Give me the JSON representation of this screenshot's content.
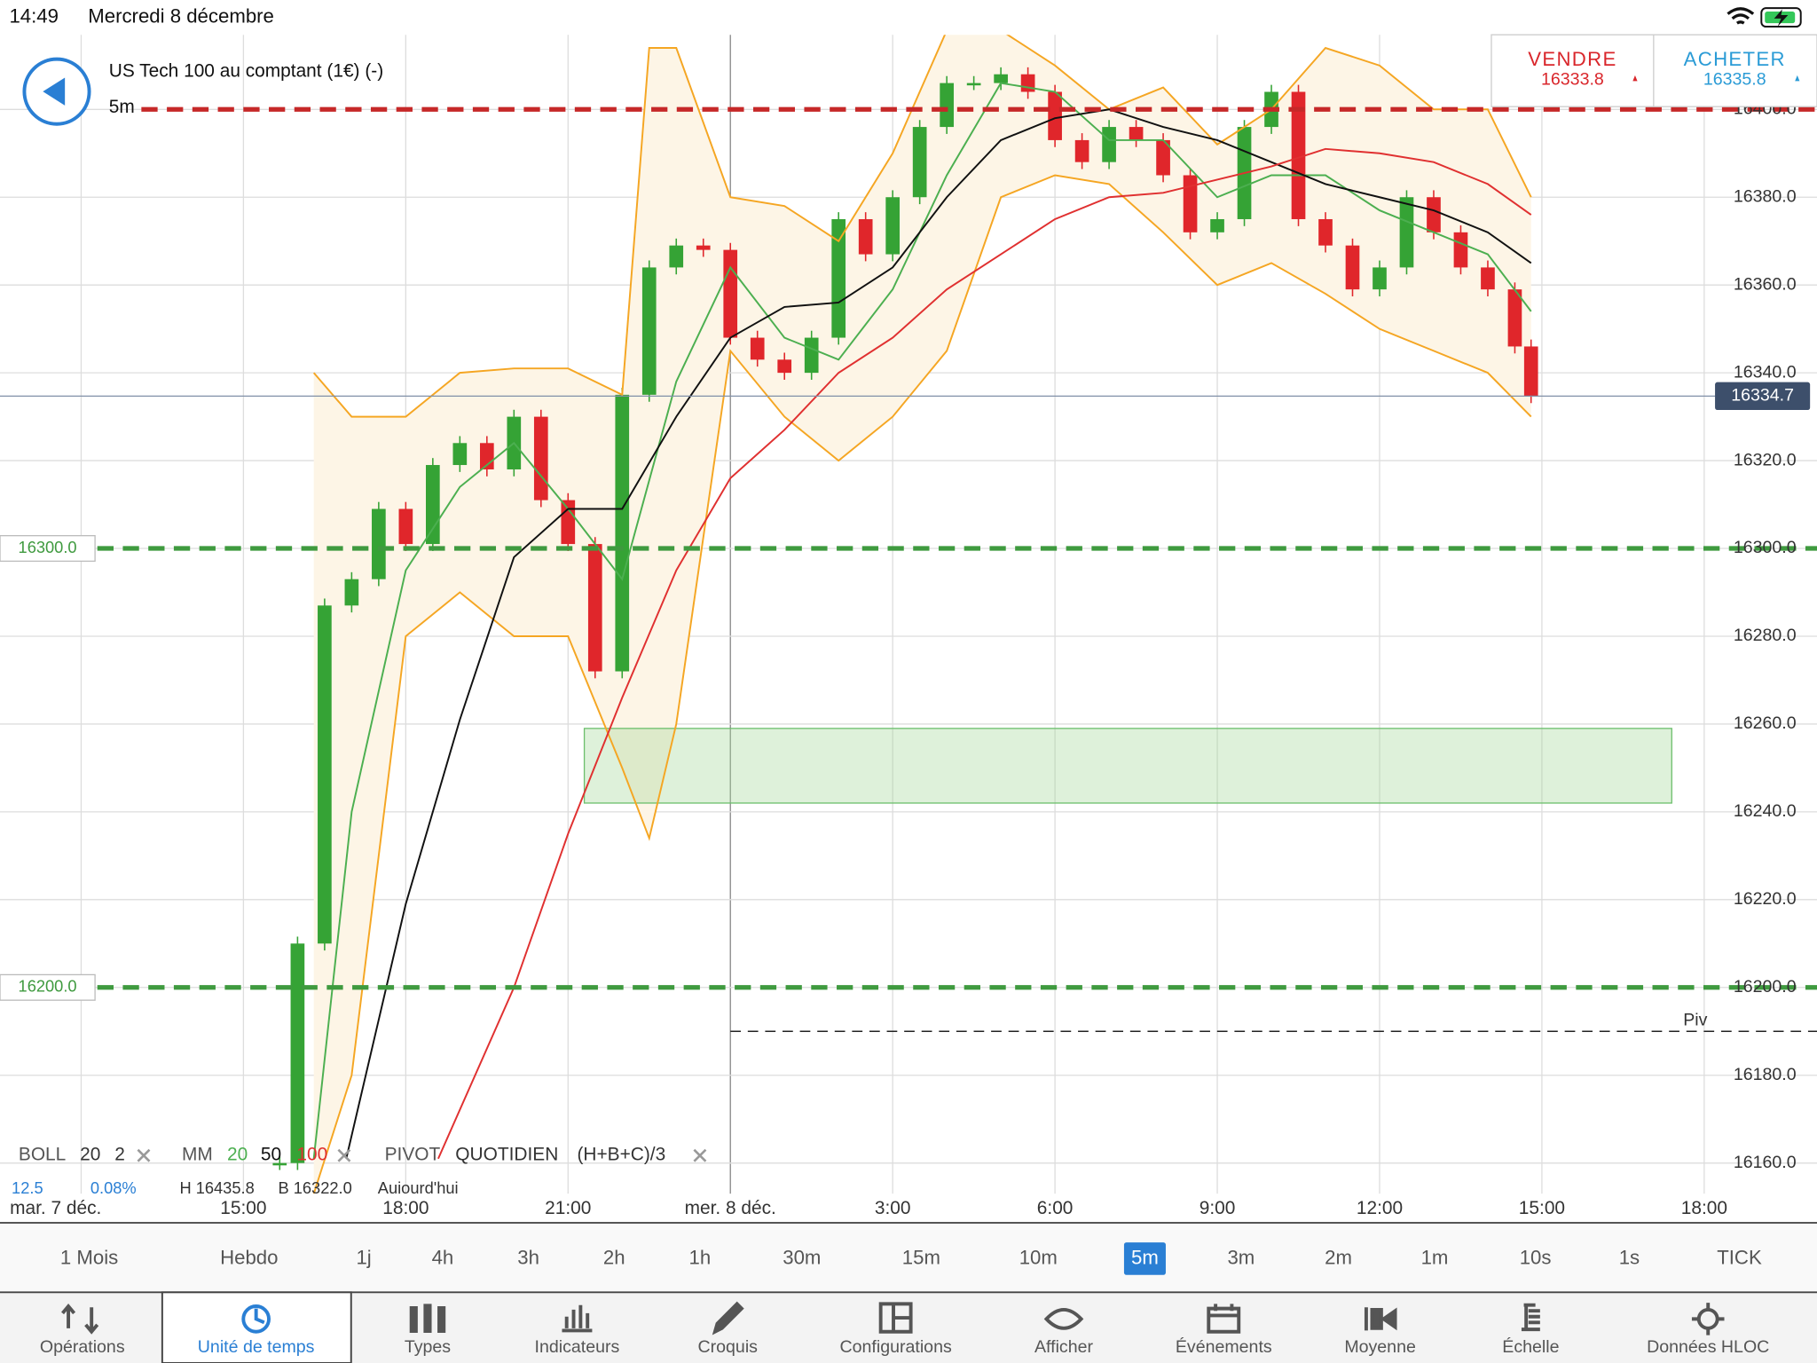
{
  "status_bar": {
    "time": "14:49",
    "date": "Mercredi 8 décembre"
  },
  "header": {
    "instrument": "US Tech 100 au comptant (1€) (-)",
    "timeframe": "5m"
  },
  "quotes": {
    "sell": {
      "label": "VENDRE",
      "price": "16333.8",
      "color": "#d9262b"
    },
    "buy": {
      "label": "ACHETER",
      "price": "16335.8",
      "color": "#2a9bd6"
    }
  },
  "chart_data": {
    "type": "candlestick",
    "x": [
      15.67,
      16,
      16.5,
      17,
      17.5,
      18,
      18.5,
      19,
      19.5,
      20,
      20.5,
      21,
      21.5,
      22,
      22.5,
      23,
      23.5,
      24,
      24.5,
      25,
      25.5,
      26,
      26.5,
      27,
      27.5,
      28,
      28.5,
      29,
      29.5,
      30,
      30.5,
      31,
      31.5,
      32,
      32.5,
      33,
      33.5,
      34,
      34.5,
      35,
      35.5,
      36,
      36.5,
      37,
      37.5,
      38,
      38.5,
      38.8
    ],
    "closes": [
      16160,
      16210,
      16287,
      16293,
      16309,
      16301,
      16319,
      16324,
      16318,
      16330,
      16311,
      16301,
      16272,
      16335,
      16364,
      16369,
      16368,
      16348,
      16343,
      16340,
      16348,
      16375,
      16367,
      16380,
      16396,
      16406,
      16406,
      16408,
      16404,
      16393,
      16388,
      16396,
      16393,
      16385,
      16372,
      16375,
      16396,
      16404,
      16375,
      16369,
      16359,
      16364,
      16380,
      16372,
      16364,
      16359,
      16346,
      16334.7
    ],
    "up_color": "#35a335",
    "down_color": "#e0262b",
    "xlim": [
      10.5,
      42.2
    ],
    "ylim": [
      16153,
      16417
    ],
    "xticks": [
      {
        "value": 12,
        "label": "mar. 7 déc."
      },
      {
        "value": 15,
        "label": "15:00"
      },
      {
        "value": 18,
        "label": "18:00"
      },
      {
        "value": 21,
        "label": "21:00"
      },
      {
        "value": 24,
        "label": "mer. 8 déc."
      },
      {
        "value": 27,
        "label": "3:00"
      },
      {
        "value": 30,
        "label": "6:00"
      },
      {
        "value": 33,
        "label": "9:00"
      },
      {
        "value": 36,
        "label": "12:00"
      },
      {
        "value": 39,
        "label": "15:00"
      },
      {
        "value": 42,
        "label": "18:00"
      }
    ],
    "yticks": [
      {
        "value": 16160,
        "label": "16160.0"
      },
      {
        "value": 16180,
        "label": "16180.0"
      },
      {
        "value": 16200,
        "label": "16200.0"
      },
      {
        "value": 16220,
        "label": "16220.0"
      },
      {
        "value": 16240,
        "label": "16240.0"
      },
      {
        "value": 16260,
        "label": "16260.0"
      },
      {
        "value": 16280,
        "label": "16280.0"
      },
      {
        "value": 16300,
        "label": "16300.0"
      },
      {
        "value": 16320,
        "label": "16320.0"
      },
      {
        "value": 16340,
        "label": "16340.0"
      },
      {
        "value": 16360,
        "label": "16360.0"
      },
      {
        "value": 16380,
        "label": "16380.0"
      },
      {
        "value": 16400,
        "label": "16400.0"
      }
    ],
    "grid": true,
    "bollinger": {
      "label": "BOLL",
      "period": "20",
      "deviations": "2",
      "color": "#f5a623",
      "fill": "#fdf5e6",
      "x": [
        16.3,
        17,
        18,
        19,
        20,
        21,
        22,
        22.5,
        23,
        24,
        25,
        26,
        27,
        28,
        29,
        30,
        31,
        32,
        33,
        34,
        35,
        36,
        37,
        38,
        38.8
      ],
      "upper": [
        16340,
        16330,
        16330,
        16340,
        16341,
        16341,
        16335,
        16414,
        16414,
        16380,
        16378,
        16370,
        16390,
        16418,
        16418,
        16410,
        16400,
        16405,
        16392,
        16400,
        16414,
        16410,
        16400,
        16400,
        16380
      ],
      "lower": [
        16153,
        16180,
        16280,
        16290,
        16280,
        16280,
        16250,
        16234,
        16260,
        16345,
        16330,
        16320,
        16330,
        16345,
        16380,
        16385,
        16383,
        16372,
        16360,
        16365,
        16358,
        16350,
        16345,
        16340,
        16330
      ]
    },
    "ma_label": "MM",
    "moving_averages": [
      {
        "period": "20",
        "color": "#4caf50",
        "x": [
          16.3,
          17,
          18,
          19,
          20,
          21,
          22,
          23,
          24,
          25,
          26,
          27,
          28,
          29,
          30,
          31,
          32,
          33,
          34,
          35,
          36,
          37,
          38,
          38.8
        ],
        "values": [
          16161,
          16240,
          16295,
          16314,
          16324,
          16309,
          16293,
          16338,
          16364,
          16348,
          16343,
          16359,
          16385,
          16406,
          16404,
          16393,
          16393,
          16380,
          16385,
          16385,
          16377,
          16372,
          16367,
          16354
        ]
      },
      {
        "period": "50",
        "color": "#111111",
        "x": [
          16.9,
          18,
          19,
          20,
          21,
          22,
          23,
          24,
          25,
          26,
          27,
          28,
          29,
          30,
          31,
          32,
          33,
          34,
          35,
          36,
          37,
          38,
          38.8
        ],
        "values": [
          16161,
          16219,
          16261,
          16298,
          16309,
          16309,
          16330,
          16348,
          16355,
          16356,
          16364,
          16380,
          16393,
          16398,
          16400,
          16396,
          16393,
          16388,
          16383,
          16380,
          16377,
          16372,
          16365
        ]
      },
      {
        "period": "100",
        "color": "#e03030",
        "x": [
          18.6,
          20,
          21,
          22,
          23,
          24,
          25,
          26,
          27,
          28,
          29,
          30,
          31,
          32,
          33,
          34,
          35,
          36,
          37,
          38,
          38.8
        ],
        "values": [
          16161,
          16200,
          16235,
          16266,
          16295,
          16316,
          16327,
          16340,
          16348,
          16359,
          16367,
          16375,
          16380,
          16381,
          16384,
          16387,
          16391,
          16390,
          16388,
          16383,
          16376
        ]
      }
    ],
    "levels": [
      {
        "value": 16400,
        "color": "#c62828"
      },
      {
        "value": 16300,
        "label": "16300.0",
        "color": "#3f9a3f"
      },
      {
        "value": 16200,
        "label": "16200.0",
        "color": "#3f9a3f"
      }
    ],
    "current_price": {
      "value": 16334.7,
      "color": "#3d4f6b"
    },
    "zone": {
      "x_from": 21.3,
      "x_to": 41.4,
      "low": 16242,
      "high": 16259
    },
    "pivot": {
      "indicator": "PIVOT",
      "mode": "QUOTIDIEN",
      "formula": "(H+B+C)/3",
      "level_label": "Piv",
      "value": 16190,
      "x_from": 24
    },
    "info_row": [
      "12.5",
      "0.08%",
      "H 16435.8",
      "B 16322.0",
      "Aujourd'hui"
    ]
  },
  "timeframes": [
    "1 Mois",
    "Hebdo",
    "1j",
    "4h",
    "3h",
    "2h",
    "1h",
    "30m",
    "15m",
    "10m",
    "5m",
    "3m",
    "2m",
    "1m",
    "10s",
    "1s",
    "TICK"
  ],
  "selected_timeframe": 10,
  "tabs": [
    "Opérations",
    "Unité de temps",
    "Types",
    "Indicateurs",
    "Croquis",
    "Configurations",
    "Afficher",
    "Événements",
    "Moyenne",
    "Échelle",
    "Données HLOC"
  ],
  "selected_tab": 1
}
